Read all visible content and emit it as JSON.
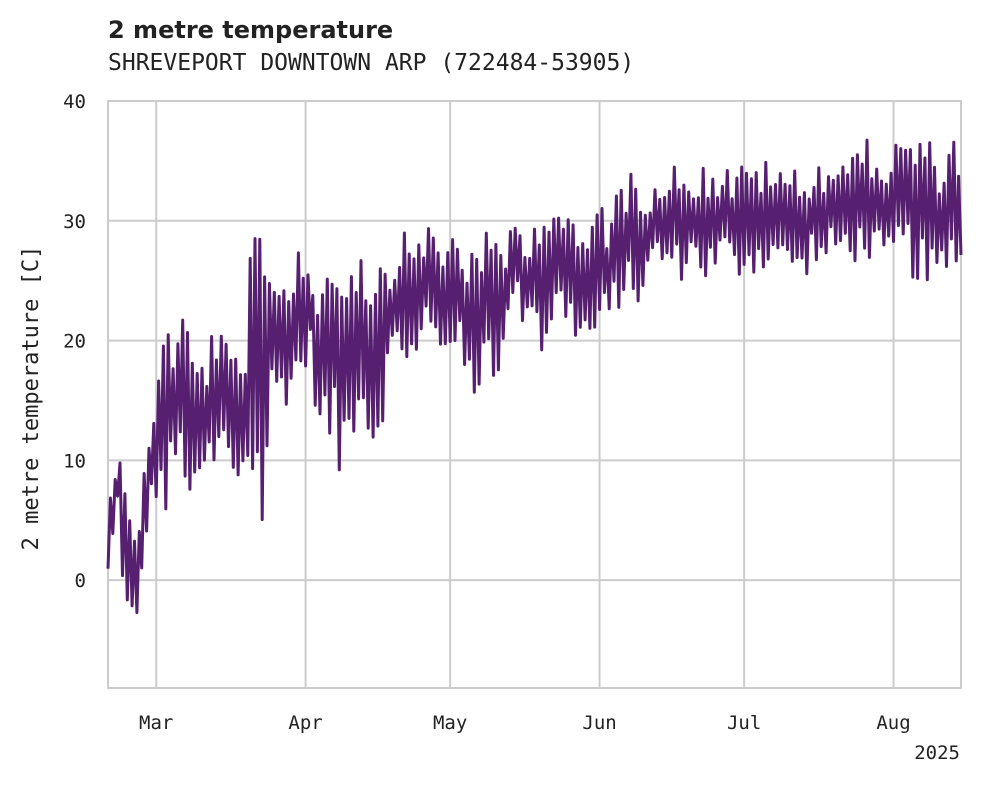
{
  "chart_data": {
    "type": "line",
    "title": "2 metre temperature",
    "subtitle": "SHREVEPORT DOWNTOWN ARP (722484-53905)",
    "xlabel": "",
    "ylabel": "2 metre temperature [C]",
    "x_start": "2025-02-19",
    "x_end": "2025-08-15",
    "ylim": [
      -9,
      40
    ],
    "yticks": [
      0,
      10,
      20,
      30,
      40
    ],
    "xticks": [
      {
        "date": "2025-03-01",
        "label": "Mar"
      },
      {
        "date": "2025-04-01",
        "label": "Apr"
      },
      {
        "date": "2025-05-01",
        "label": "May"
      },
      {
        "date": "2025-06-01",
        "label": "Jun"
      },
      {
        "date": "2025-07-01",
        "label": "Jul"
      },
      {
        "date": "2025-08-01",
        "label": "Aug"
      }
    ],
    "year_label": "2025",
    "grid": true,
    "line_color": "#561f70",
    "series": [
      {
        "name": "",
        "x": [
          "2025-02-19",
          "2025-02-21",
          "2025-02-23",
          "2025-02-25",
          "2025-02-27",
          "2025-03-01",
          "2025-03-03",
          "2025-03-05",
          "2025-03-07",
          "2025-03-09",
          "2025-03-11",
          "2025-03-13",
          "2025-03-15",
          "2025-03-17",
          "2025-03-19",
          "2025-03-21",
          "2025-03-23",
          "2025-03-25",
          "2025-03-27",
          "2025-03-29",
          "2025-03-31",
          "2025-04-02",
          "2025-04-04",
          "2025-04-06",
          "2025-04-08",
          "2025-04-10",
          "2025-04-12",
          "2025-04-14",
          "2025-04-16",
          "2025-04-18",
          "2025-04-20",
          "2025-04-22",
          "2025-04-24",
          "2025-04-26",
          "2025-04-28",
          "2025-04-30",
          "2025-05-02",
          "2025-05-04",
          "2025-05-06",
          "2025-05-08",
          "2025-05-10",
          "2025-05-12",
          "2025-05-14",
          "2025-05-16",
          "2025-05-18",
          "2025-05-20",
          "2025-05-22",
          "2025-05-24",
          "2025-05-26",
          "2025-05-28",
          "2025-05-30",
          "2025-06-01",
          "2025-06-03",
          "2025-06-05",
          "2025-06-07",
          "2025-06-09",
          "2025-06-11",
          "2025-06-13",
          "2025-06-15",
          "2025-06-17",
          "2025-06-19",
          "2025-06-21",
          "2025-06-23",
          "2025-06-25",
          "2025-06-27",
          "2025-06-29",
          "2025-07-01",
          "2025-07-03",
          "2025-07-05",
          "2025-07-07",
          "2025-07-09",
          "2025-07-11",
          "2025-07-13",
          "2025-07-15",
          "2025-07-17",
          "2025-07-19",
          "2025-07-21",
          "2025-07-23",
          "2025-07-25",
          "2025-07-27",
          "2025-07-29",
          "2025-07-31",
          "2025-08-02",
          "2025-08-04",
          "2025-08-06",
          "2025-08-08",
          "2025-08-10",
          "2025-08-12",
          "2025-08-14",
          "2025-08-15"
        ],
        "min": [
          -1,
          5,
          -7,
          -5,
          3,
          6,
          3,
          8,
          7,
          2,
          8,
          6,
          10,
          5,
          8,
          6,
          1,
          14,
          13,
          15,
          15,
          18,
          10,
          9,
          7,
          8,
          14,
          10,
          9,
          16,
          18,
          17,
          15,
          20,
          18,
          18,
          19,
          15,
          12,
          18,
          16,
          17,
          23,
          21,
          22,
          17,
          20,
          21,
          20,
          19,
          18,
          19,
          20,
          22,
          22,
          22,
          24,
          26,
          25,
          24,
          25,
          26,
          24,
          25,
          26,
          24,
          25,
          25,
          25,
          26,
          25,
          25,
          24,
          26,
          25,
          26,
          26,
          26,
          26,
          26,
          25,
          24,
          26,
          25,
          24,
          22,
          23,
          24,
          26,
          25
        ],
        "max": [
          6,
          12,
          11,
          2,
          12,
          17,
          23,
          21,
          23,
          20,
          18,
          23,
          20,
          20,
          18,
          30,
          28,
          25,
          28,
          24,
          30,
          26,
          24,
          31,
          26,
          30,
          28,
          27,
          29,
          26,
          29,
          29,
          30,
          30,
          29,
          28,
          30,
          28,
          29,
          29,
          29,
          27,
          31,
          29,
          29,
          33,
          32,
          32,
          30,
          29,
          30,
          33,
          30,
          34,
          34,
          34,
          33,
          34,
          34,
          35,
          35,
          34,
          35,
          34,
          35,
          34,
          35,
          35,
          35,
          35,
          34,
          35,
          33,
          35,
          35,
          35,
          36,
          36,
          36,
          37,
          36,
          36,
          37,
          38,
          37,
          37,
          36,
          36,
          37,
          36
        ]
      }
    ]
  }
}
